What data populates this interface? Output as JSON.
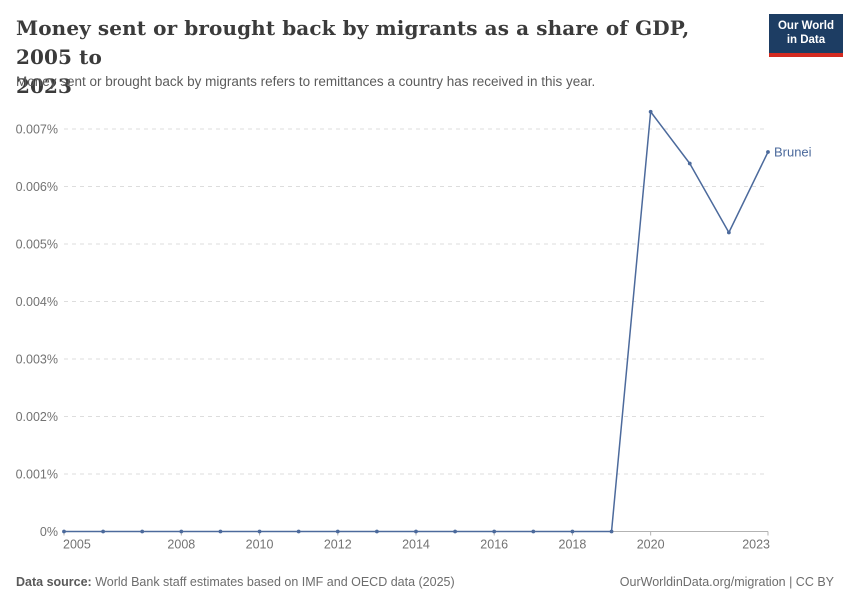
{
  "header": {
    "title": "Money sent or brought back by migrants as a share of GDP, 2005 to 2023",
    "title_line1": "Money sent or brought back by migrants as a share of GDP, 2005 to",
    "title_line2": "2023",
    "subtitle": "Money sent or brought back by migrants refers to remittances a country has received in this year.",
    "logo_line1": "Our World",
    "logo_line2": "in Data"
  },
  "footer": {
    "source_label": "Data source:",
    "source_text": " World Bank staff estimates based on IMF and OECD data (2025)",
    "license": "OurWorldinData.org/migration | CC BY"
  },
  "colors": {
    "line": "#4c6a9c",
    "grid": "#dddddd",
    "axis": "#b3b3b3",
    "tick_label": "#737373",
    "logo_bg": "#1d3d63",
    "logo_red": "#d42b21"
  },
  "chart_data": {
    "type": "line",
    "title": "Money sent or brought back by migrants as a share of GDP, 2005 to 2023",
    "subtitle": "Money sent or brought back by migrants refers to remittances a country has received in this year.",
    "unit": "% of GDP",
    "grid": true,
    "legend_position": "end-of-line",
    "xlim": [
      2005,
      2023
    ],
    "ylim": [
      0,
      0.0073
    ],
    "x_ticks": [
      2005,
      2008,
      2010,
      2012,
      2014,
      2016,
      2018,
      2020,
      2023
    ],
    "y_ticks": [
      0,
      0.001,
      0.002,
      0.003,
      0.004,
      0.005,
      0.006,
      0.007
    ],
    "y_tick_labels": [
      "0%",
      "0.001%",
      "0.002%",
      "0.003%",
      "0.004%",
      "0.005%",
      "0.006%",
      "0.007%"
    ],
    "series": [
      {
        "name": "Brunei",
        "x": [
          2005,
          2006,
          2007,
          2008,
          2009,
          2010,
          2011,
          2012,
          2013,
          2014,
          2015,
          2016,
          2017,
          2018,
          2019,
          2020,
          2021,
          2022,
          2023
        ],
        "values": [
          0,
          0,
          0,
          0,
          0,
          0,
          0,
          0,
          0,
          0,
          0,
          0,
          0,
          0,
          0,
          0.0073,
          0.0064,
          0.0052,
          0.0066
        ]
      }
    ]
  }
}
